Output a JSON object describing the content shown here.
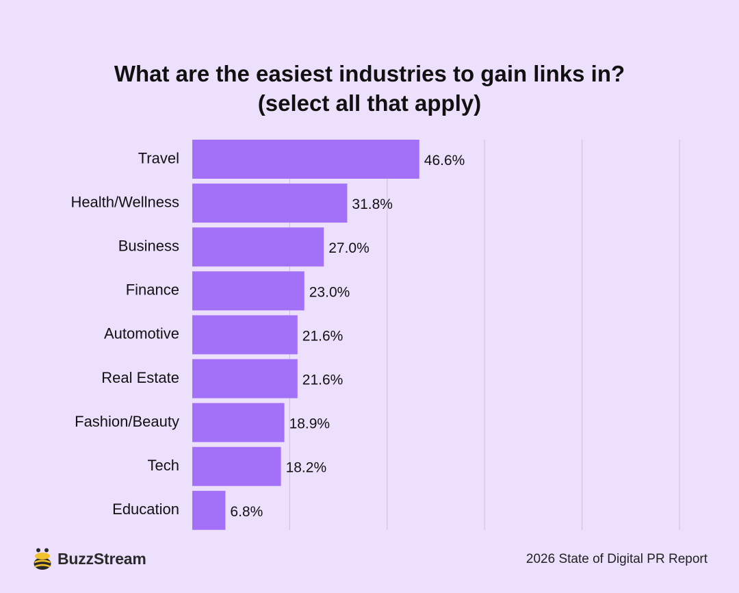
{
  "colors": {
    "background": "#ece0fd",
    "bar": "#a371f7",
    "grid": "#cdc6dc",
    "text": "#111111",
    "logo_yellow": "#f2c12e",
    "logo_dark": "#2a2a2a"
  },
  "chart_data": {
    "type": "bar",
    "orientation": "horizontal",
    "title_lines": [
      "What are the easiest industries to gain links in?",
      "(select all that apply)"
    ],
    "categories": [
      "Travel",
      "Health/Wellness",
      "Business",
      "Finance",
      "Automotive",
      "Real Estate",
      "Fashion/Beauty",
      "Tech",
      "Education"
    ],
    "values": [
      46.6,
      31.8,
      27.0,
      23.0,
      21.6,
      21.6,
      18.9,
      18.2,
      6.8
    ],
    "value_labels": [
      "46.6%",
      "31.8%",
      "27.0%",
      "23.0%",
      "21.6%",
      "21.6%",
      "18.9%",
      "18.2%",
      "6.8%"
    ],
    "xlim": [
      0,
      100
    ],
    "gridlines": [
      20,
      40,
      60,
      80,
      100
    ],
    "grid": true,
    "legend": "none"
  },
  "footer": {
    "brand": "BuzzStream",
    "logo_icon": "buzzstream-bee-icon",
    "report": "2026 State of Digital PR Report"
  }
}
